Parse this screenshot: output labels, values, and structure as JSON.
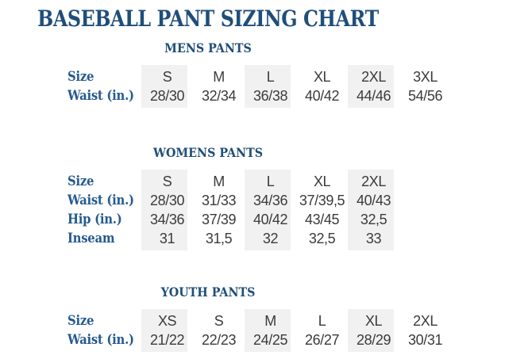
{
  "title": "BASEBALL PANT SIZING CHART",
  "colors": {
    "heading_blue": "#1f4e79",
    "label_blue": "#265a8f",
    "value_gray": "#3b3b3b",
    "shade_bg": "#f1f1f1"
  },
  "sections": [
    {
      "id": "mens",
      "title": "MENS PANTS",
      "rows": [
        {
          "label": "Size",
          "values": [
            "S",
            "M",
            "L",
            "XL",
            "2XL",
            "3XL"
          ]
        },
        {
          "label": "Waist (in.)",
          "values": [
            "28/30",
            "32/34",
            "36/38",
            "40/42",
            "44/46",
            "54/56"
          ]
        }
      ]
    },
    {
      "id": "womens",
      "title": "WOMENS PANTS",
      "rows": [
        {
          "label": "Size",
          "values": [
            "S",
            "M",
            "L",
            "XL",
            "2XL"
          ]
        },
        {
          "label": "Waist (in.)",
          "values": [
            "28/30",
            "31/33",
            "34/36",
            "37/39,5",
            "40/43"
          ]
        },
        {
          "label": "Hip (in.)",
          "values": [
            "34/36",
            "37/39",
            "40/42",
            "43/45",
            "32,5"
          ]
        },
        {
          "label": "Inseam",
          "values": [
            "31",
            "31,5",
            "32",
            "32,5",
            "33"
          ]
        }
      ]
    },
    {
      "id": "youth",
      "title": "YOUTH PANTS",
      "rows": [
        {
          "label": "Size",
          "values": [
            "XS",
            "S",
            "M",
            "L",
            "XL",
            "2XL"
          ]
        },
        {
          "label": "Waist (in.)",
          "values": [
            "21/22",
            "22/23",
            "24/25",
            "26/27",
            "28/29",
            "30/31"
          ]
        }
      ]
    }
  ]
}
